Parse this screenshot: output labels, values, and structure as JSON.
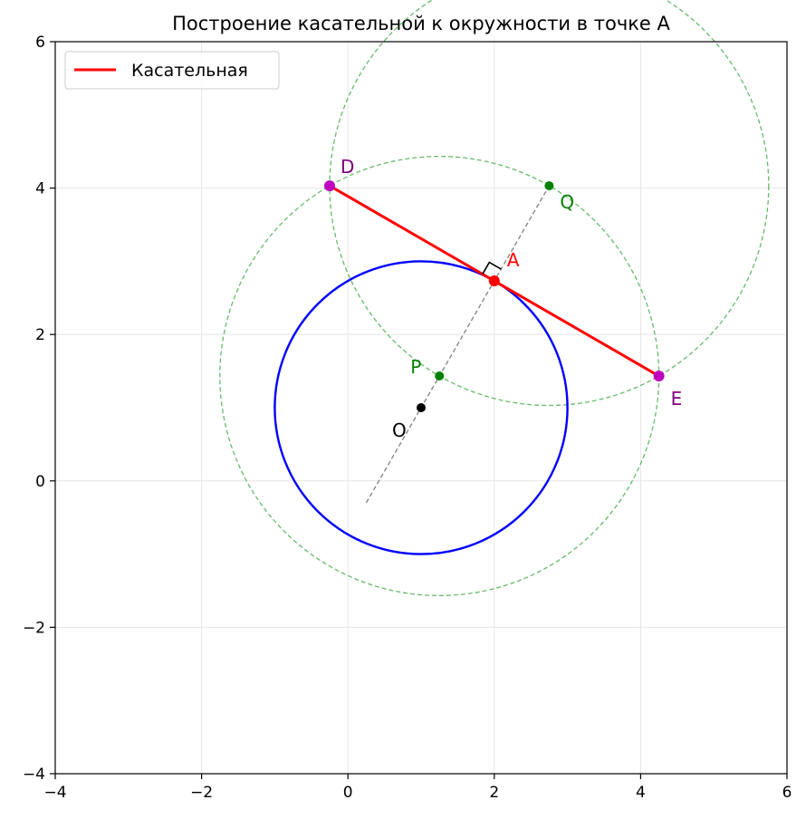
{
  "chart_data": {
    "type": "geometric-construction",
    "title": "Построение касательной к окружности в точке A",
    "xlim": [
      -4,
      6
    ],
    "ylim": [
      -4,
      6
    ],
    "grid": true,
    "x_ticks": [
      -4,
      -2,
      0,
      2,
      4,
      6
    ],
    "y_ticks": [
      -4,
      -2,
      0,
      2,
      4,
      6
    ],
    "legend": {
      "placement": "top-left",
      "entries": [
        {
          "label": "Касательная",
          "color": "#ff0000"
        }
      ]
    },
    "circle_main": {
      "center": [
        1,
        1
      ],
      "radius": 2,
      "color": "#0000ff"
    },
    "construction_circles": [
      {
        "center": [
          1.25,
          1.433
        ],
        "radius": 3,
        "color": "#4caf50"
      },
      {
        "center": [
          2.75,
          4.031
        ],
        "radius": 3,
        "color": "#4caf50"
      }
    ],
    "radius_line": {
      "from": [
        0.25,
        -0.299
      ],
      "to": [
        2.75,
        4.031
      ],
      "color": "#808080"
    },
    "tangent": {
      "from": [
        -0.25,
        4.031
      ],
      "to": [
        4.25,
        1.433
      ],
      "color": "#ff0000",
      "label": "Касательная"
    },
    "points": [
      {
        "id": "O",
        "label": "O",
        "x": 1,
        "y": 1,
        "color": "#000000",
        "text_color": "#000000"
      },
      {
        "id": "A",
        "label": "A",
        "x": 2,
        "y": 2.732,
        "color": "#ff0000",
        "text_color": "#ff0000"
      },
      {
        "id": "P",
        "label": "P",
        "x": 1.25,
        "y": 1.433,
        "color": "#008000",
        "text_color": "#008000"
      },
      {
        "id": "Q",
        "label": "Q",
        "x": 2.75,
        "y": 4.031,
        "color": "#008000",
        "text_color": "#008000"
      },
      {
        "id": "D",
        "label": "D",
        "x": -0.25,
        "y": 4.031,
        "color": "#bf00bf",
        "text_color": "#800080"
      },
      {
        "id": "E",
        "label": "E",
        "x": 4.25,
        "y": 1.433,
        "color": "#bf00bf",
        "text_color": "#800080"
      }
    ]
  }
}
